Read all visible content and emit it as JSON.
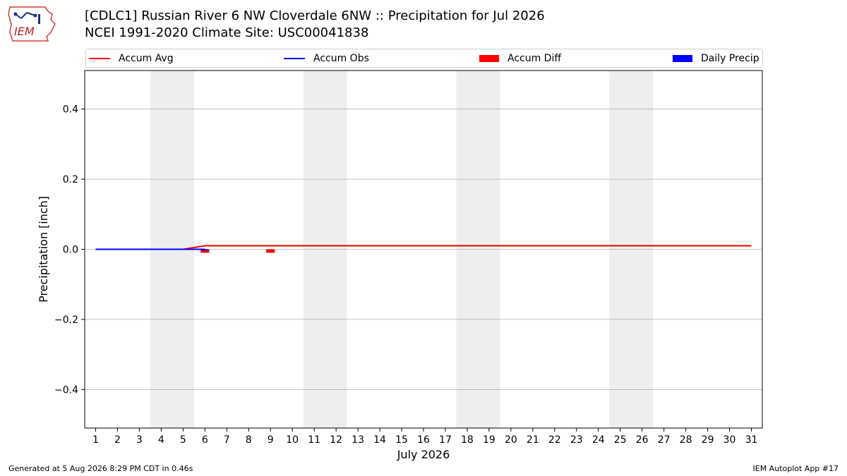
{
  "header": {
    "logo_text": "IEM",
    "title_line1": "[CDLC1] Russian River 6 NW Cloverdale 6NW :: Precipitation for Jul 2026",
    "title_line2": "NCEI 1991-2020 Climate Site: USC00041838"
  },
  "legend": {
    "accum_avg": "Accum Avg",
    "accum_obs": "Accum Obs",
    "accum_diff": "Accum Diff",
    "daily_precip": "Daily Precip"
  },
  "colors": {
    "accum_avg": "#ff0000",
    "accum_obs": "#0000ff",
    "accum_diff": "#ff0000",
    "daily_precip": "#0000ff",
    "weekend_shade": "#eeeeee",
    "grid": "#b0b0b0"
  },
  "footer": {
    "generated": "Generated at 5 Aug 2026 8:29 PM CDT in 0.46s",
    "app": "IEM Autoplot App #17"
  },
  "chart_data": {
    "type": "line",
    "xlabel": "July 2026",
    "ylabel": "Precipitation [inch]",
    "xlim": [
      0.5,
      31.5
    ],
    "ylim": [
      -0.51,
      0.51
    ],
    "x_ticks": [
      1,
      2,
      3,
      4,
      5,
      6,
      7,
      8,
      9,
      10,
      11,
      12,
      13,
      14,
      15,
      16,
      17,
      18,
      19,
      20,
      21,
      22,
      23,
      24,
      25,
      26,
      27,
      28,
      29,
      30,
      31
    ],
    "y_ticks": [
      0.4,
      0.2,
      0.0,
      -0.2,
      -0.4
    ],
    "y_tick_labels": [
      "0.4",
      "0.2",
      "0.0",
      "−0.2",
      "−0.4"
    ],
    "grid": "y-axis",
    "legend_position": "top",
    "weekend_shading": [
      [
        3.5,
        5.5
      ],
      [
        10.5,
        12.5
      ],
      [
        17.5,
        19.5
      ],
      [
        24.5,
        26.5
      ]
    ],
    "series": [
      {
        "name": "Accum Avg",
        "kind": "line",
        "x": [
          1,
          2,
          3,
          4,
          5,
          6,
          7,
          8,
          9,
          10,
          11,
          12,
          13,
          14,
          15,
          16,
          17,
          18,
          19,
          20,
          21,
          22,
          23,
          24,
          25,
          26,
          27,
          28,
          29,
          30,
          31
        ],
        "values": [
          0,
          0,
          0,
          0,
          0,
          0.01,
          0.01,
          0.01,
          0.01,
          0.01,
          0.01,
          0.01,
          0.01,
          0.01,
          0.01,
          0.01,
          0.01,
          0.01,
          0.01,
          0.01,
          0.01,
          0.01,
          0.01,
          0.01,
          0.01,
          0.01,
          0.01,
          0.01,
          0.01,
          0.01,
          0.01
        ]
      },
      {
        "name": "Accum Obs",
        "kind": "line",
        "x": [
          1,
          2,
          3,
          4,
          5,
          6
        ],
        "values": [
          0,
          0,
          0,
          0,
          0,
          0
        ]
      },
      {
        "name": "Accum Diff",
        "kind": "bar",
        "x": [
          6,
          9
        ],
        "values": [
          -0.01,
          -0.01
        ]
      },
      {
        "name": "Daily Precip",
        "kind": "bar",
        "x": [
          6
        ],
        "values": [
          0.0
        ]
      }
    ]
  }
}
